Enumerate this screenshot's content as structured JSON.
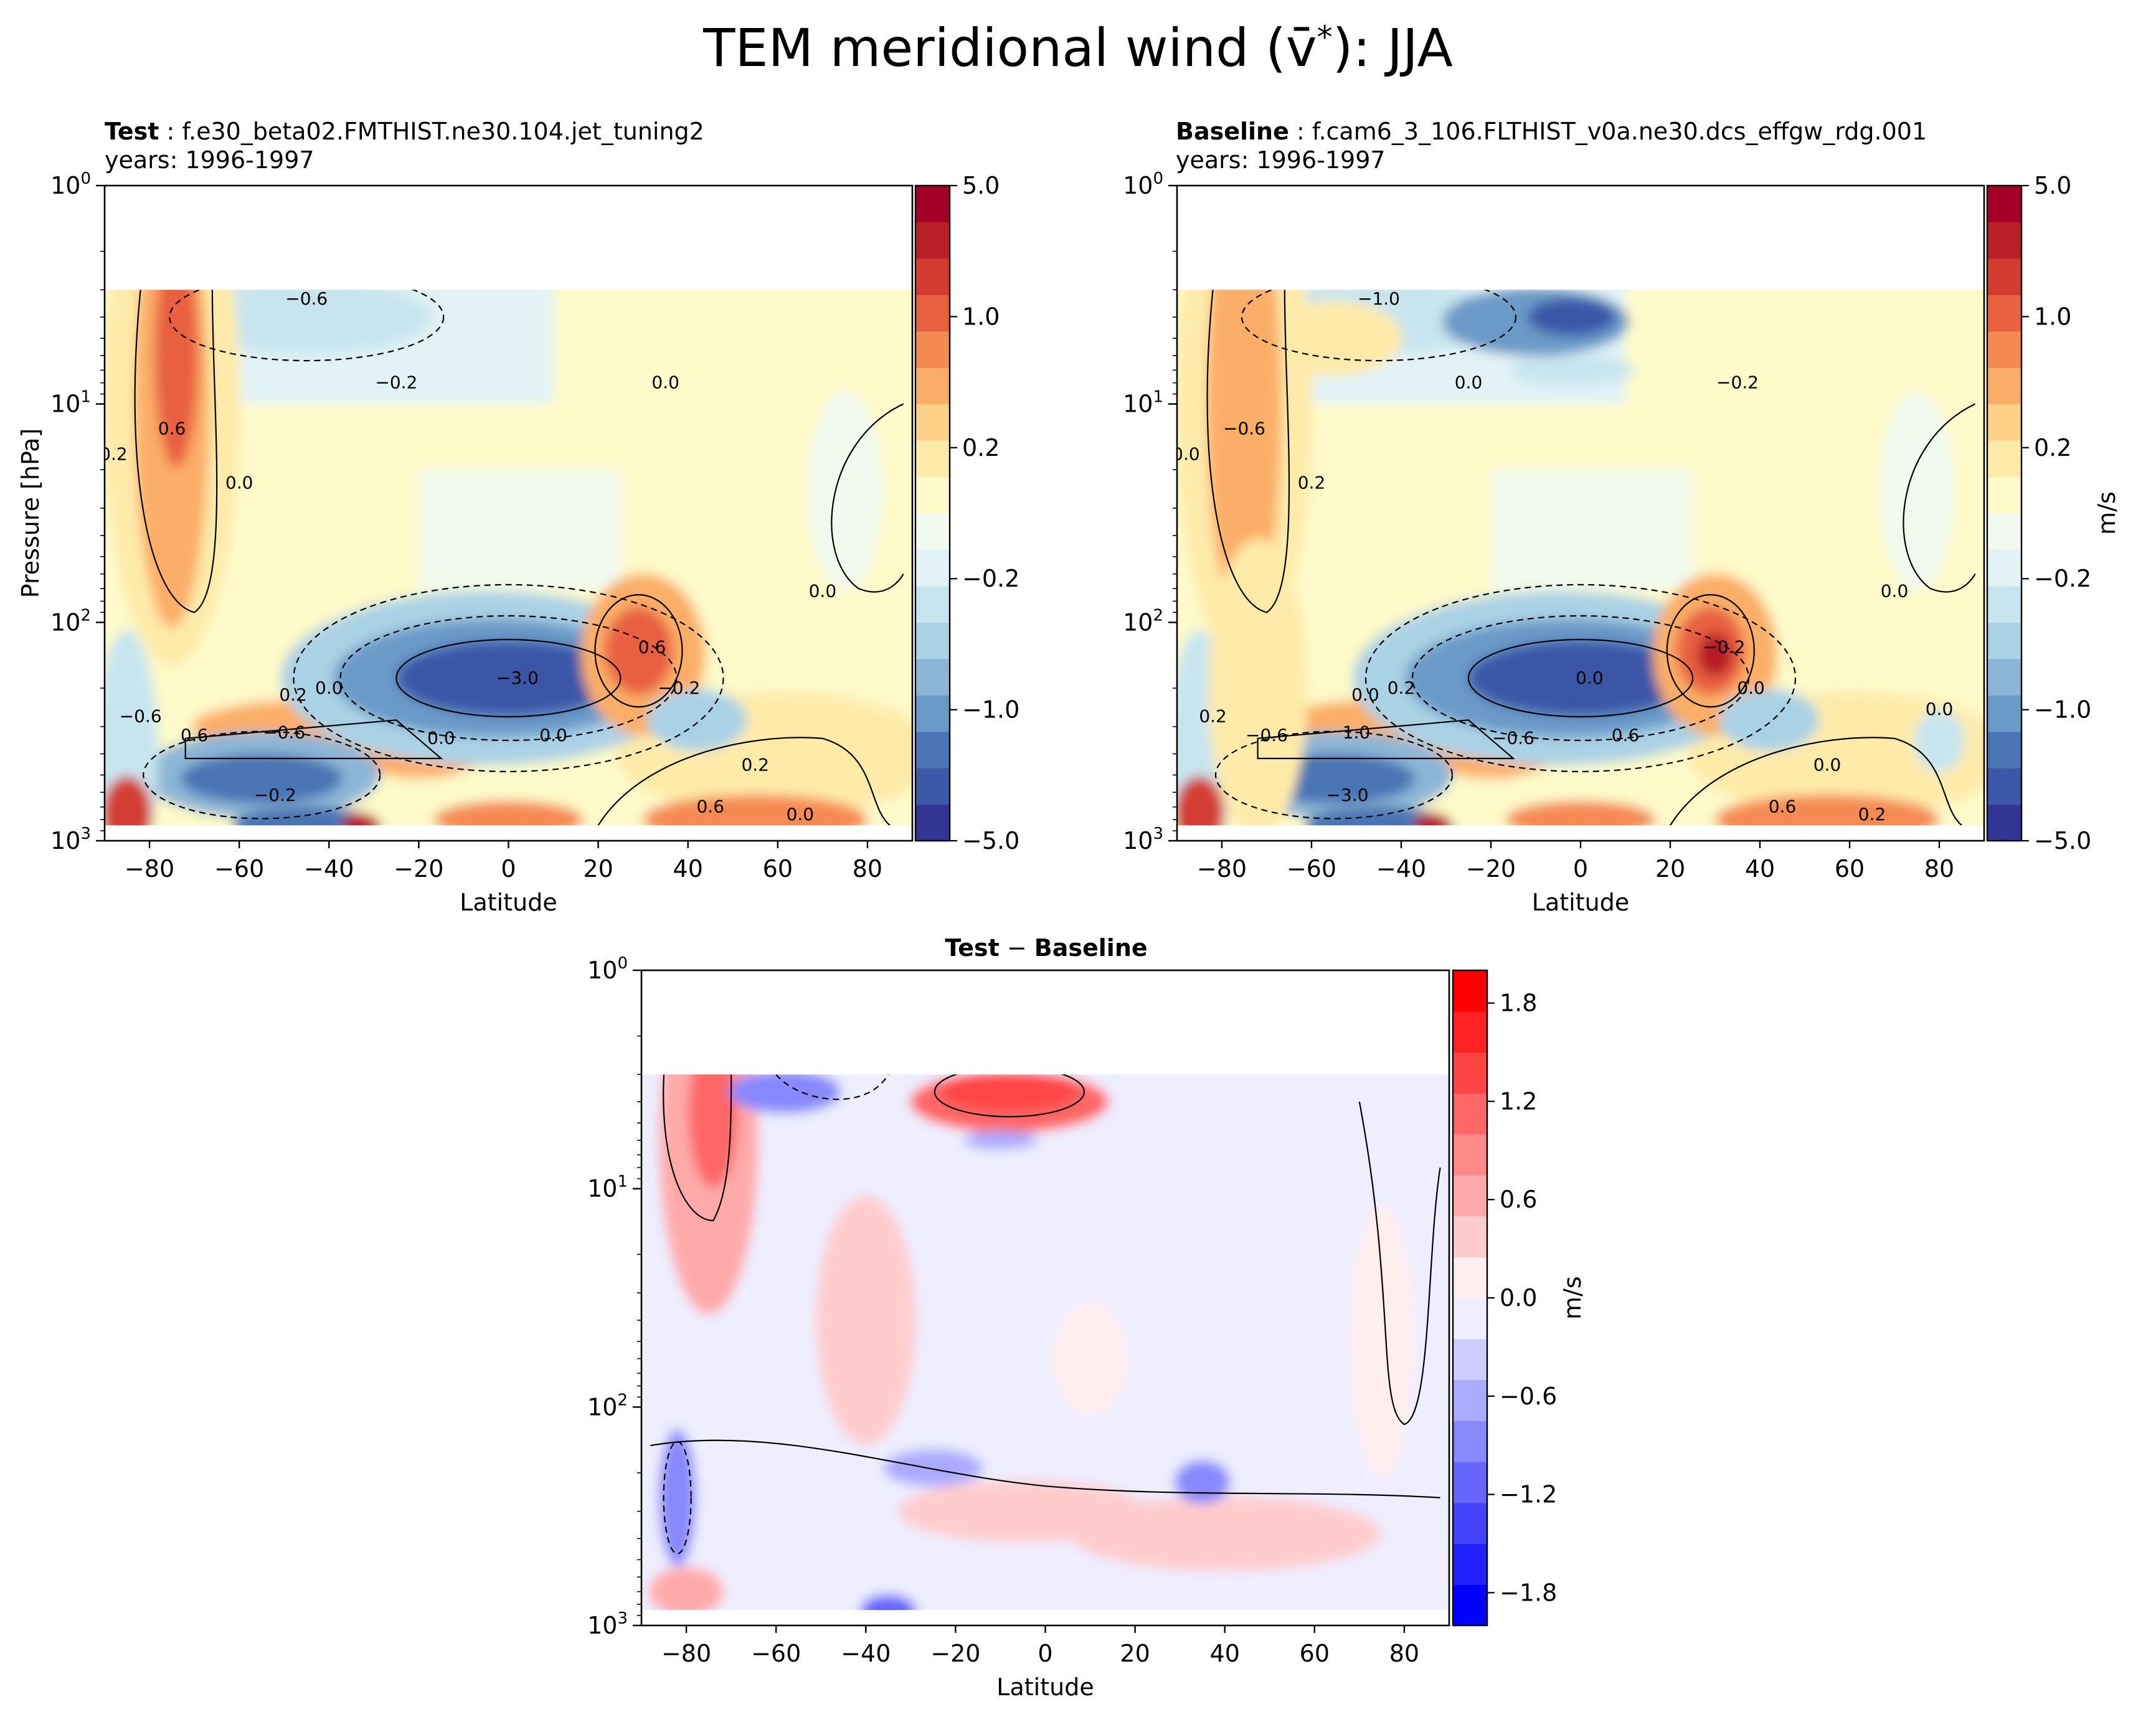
{
  "figure": {
    "title_main": "TEM meridional wind (",
    "title_var": "v̄",
    "title_sup": "*",
    "title_end": "): JJA"
  },
  "panels": {
    "test": {
      "label": "Test",
      "case": "f.e30_beta02.FMTHIST.ne30.104.jet_tuning2",
      "years": "years: 1996-1997"
    },
    "baseline": {
      "label": "Baseline",
      "case": "f.cam6_3_106.FLTHIST_v0a.ne30.dcs_effgw_rdg.001",
      "years": "years: 1996-1997"
    },
    "diff": {
      "label_a": "Test",
      "sep": " − ",
      "label_b": "Baseline"
    }
  },
  "colors": {
    "rdylbu": [
      "#313695",
      "#3b57a7",
      "#4a74b4",
      "#6a9ac7",
      "#8cb6d6",
      "#aad2e5",
      "#c8e5ef",
      "#e2f3f6",
      "#f2faef",
      "#fefac9",
      "#feebaa",
      "#fdd187",
      "#fbae67",
      "#f58a52",
      "#e8613f",
      "#d33d30",
      "#b81f26",
      "#a50026"
    ],
    "bwr": [
      "#0000ff",
      "#2222ff",
      "#4444ff",
      "#6666ff",
      "#8888ff",
      "#aaaaff",
      "#ccccff",
      "#eeeeff",
      "#ffeeee",
      "#ffcccc",
      "#ffaaaa",
      "#ff8888",
      "#ff6666",
      "#ff4444",
      "#ff2222",
      "#ff0000"
    ]
  },
  "chart_data": [
    {
      "type": "heatmap",
      "panel": "test",
      "xlabel": "Latitude",
      "ylabel": "Pressure [hPa]",
      "xlim": [
        -90,
        90
      ],
      "yscale": "log",
      "ylim": [
        1000,
        1
      ],
      "x_ticks": [
        "−80",
        "−60",
        "−40",
        "−20",
        "0",
        "20",
        "40",
        "60",
        "80"
      ],
      "y_ticks": [
        "10^3",
        "10^2",
        "10^1",
        "10^0"
      ],
      "colorbar": {
        "ticks": [
          "5.0",
          "1.0",
          "0.2",
          "−0.2",
          "−1.0",
          "−5.0"
        ],
        "unit": ""
      },
      "contour_labels": [
        "−0.6",
        "0.6",
        "−0.2",
        "0.0",
        "0.2",
        "0.0",
        "0.0",
        "0.6",
        "−3.0",
        "0.2",
        "0.0",
        "−0.2",
        "−0.6",
        "0.6",
        "−0.6",
        "−0.2",
        "0.0",
        "0.2",
        "0.6",
        "0.0",
        "0.0"
      ],
      "features": [
        {
          "lat": 0,
          "p": 180,
          "value": -3.0
        },
        {
          "lat": 28,
          "p": 130,
          "value": 0.6
        },
        {
          "lat": -75,
          "p": 20,
          "value": 0.6
        },
        {
          "lat": -40,
          "p": 3,
          "value": -0.6
        }
      ]
    },
    {
      "type": "heatmap",
      "panel": "baseline",
      "xlabel": "Latitude",
      "xlim": [
        -90,
        90
      ],
      "yscale": "log",
      "ylim": [
        1000,
        1
      ],
      "x_ticks": [
        "−80",
        "−60",
        "−40",
        "−20",
        "0",
        "20",
        "40",
        "60",
        "80"
      ],
      "y_ticks": [
        "10^3",
        "10^2",
        "10^1",
        "10^0"
      ],
      "colorbar": {
        "ticks": [
          "5.0",
          "1.0",
          "0.2",
          "−0.2",
          "−1.0",
          "−5.0"
        ],
        "unit": "m/s"
      },
      "contour_labels": [
        "−1.0",
        "−0.6",
        "0.0",
        "−0.2",
        "0.0",
        "0.2",
        "0.0",
        "−0.2",
        "0.0",
        "0.0",
        "0.2",
        "0.0",
        "0.2",
        "−0.6",
        "1.0",
        "−3.0",
        "0.6",
        "0.0",
        "0.6",
        "0.2",
        "−0.6",
        "0.0"
      ],
      "features": [
        {
          "lat": 0,
          "p": 180,
          "value": -3.0
        },
        {
          "lat": 30,
          "p": 140,
          "value": 1.0
        },
        {
          "lat": -15,
          "p": 4,
          "value": -1.0
        },
        {
          "lat": -72,
          "p": 40,
          "value": 0.2
        }
      ]
    },
    {
      "type": "heatmap",
      "panel": "difference",
      "xlabel": "Latitude",
      "xlim": [
        -90,
        90
      ],
      "yscale": "log",
      "ylim": [
        1000,
        1
      ],
      "x_ticks": [
        "−80",
        "−60",
        "−40",
        "−20",
        "0",
        "20",
        "40",
        "60",
        "80"
      ],
      "y_ticks": [
        "10^3",
        "10^2",
        "10^1",
        "10^0"
      ],
      "colorbar": {
        "ticks": [
          "1.8",
          "1.2",
          "0.6",
          "0.0",
          "−0.6",
          "−1.2",
          "−1.8"
        ],
        "unit": "m/s"
      },
      "features": [
        {
          "lat": -75,
          "p": 5,
          "value": 0.8
        },
        {
          "lat": -5,
          "p": 4,
          "value": 0.8
        },
        {
          "lat": -60,
          "p": 3.5,
          "value": -0.6
        },
        {
          "lat": -80,
          "p": 250,
          "value": -0.5
        }
      ]
    }
  ]
}
